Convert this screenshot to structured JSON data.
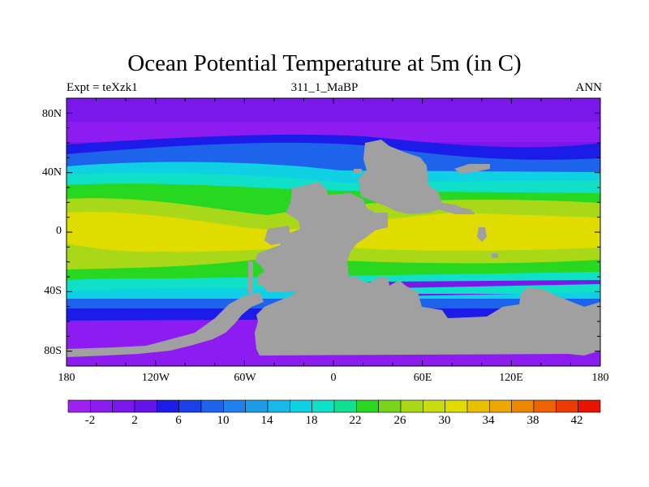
{
  "title": "Ocean Potential Temperature at 5m (in C)",
  "subtitle_left": "Expt = teXzk1",
  "subtitle_center": "311_1_MaBP",
  "subtitle_right": "ANN",
  "y_ticks": [
    "80N",
    "40N",
    "0",
    "40S",
    "80S"
  ],
  "x_ticks": [
    "180",
    "120W",
    "60W",
    "0",
    "60E",
    "120E",
    "180"
  ],
  "colorbar": {
    "labels": [
      "-2",
      "2",
      "6",
      "10",
      "14",
      "18",
      "22",
      "26",
      "30",
      "34",
      "38",
      "42"
    ],
    "colors": [
      "#a020f0",
      "#8c1cf0",
      "#7a18ec",
      "#6414e8",
      "#1c1ce8",
      "#1a40e8",
      "#1e64ea",
      "#2080ec",
      "#1e9ce8",
      "#18b8e8",
      "#10d0e4",
      "#10e0c8",
      "#10e090",
      "#28d820",
      "#78d418",
      "#a8d818",
      "#c8dc10",
      "#e0dc00",
      "#e8c000",
      "#eca800",
      "#ec8800",
      "#ec6400",
      "#ec3c00",
      "#e81400"
    ]
  },
  "map": {
    "land_color": "#a0a0a0",
    "colors": {
      "polar": "#7a18ec",
      "cold": "#8c1cf0",
      "deep_blue": "#1c1ce8",
      "blue": "#1e64ea",
      "cyan": "#10d0e4",
      "teal": "#10e0c8",
      "green": "#28d820",
      "yellow_green": "#a8d818",
      "yellow": "#e0dc00"
    }
  }
}
